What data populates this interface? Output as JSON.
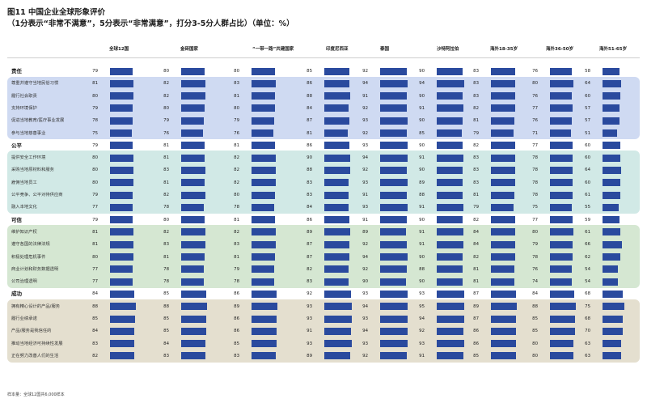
{
  "title": "图11  中国企业全球形象评价",
  "subtitle": "（1分表示“非常不满意”，5分表示“非常满意”，打分3-5分人群占比）（单位：%）",
  "footnote": "样本量：全球12国共6,000样本",
  "colors": {
    "bar": "#2a4a9e",
    "group_backgrounds": [
      "#cfdaf2",
      "#d1e9e6",
      "#d5e7d2",
      "#e4dfcf"
    ]
  },
  "chart_data": {
    "type": "bar",
    "orientation": "horizontal-small-multiples",
    "xlim": [
      0,
      100
    ],
    "columns": [
      "全球12国",
      "金砖国家",
      "“一带一路”共建国家",
      "印度尼西亚",
      "泰国",
      "沙特阿拉伯",
      "海外18-35岁",
      "海外36-50岁",
      "海外51-65岁"
    ],
    "groups": [
      {
        "name": "责任",
        "values": [
          79,
          80,
          80,
          85,
          92,
          90,
          83,
          76,
          58
        ],
        "items": [
          {
            "label": "尊重并遵守当地民俗习惯",
            "values": [
              81,
              82,
              83,
              86,
              94,
              94,
              83,
              80,
              64
            ]
          },
          {
            "label": "履行社会职责",
            "values": [
              80,
              82,
              81,
              88,
              91,
              90,
              83,
              76,
              60
            ]
          },
          {
            "label": "支持环境保护",
            "values": [
              79,
              80,
              80,
              84,
              92,
              91,
              82,
              77,
              57
            ]
          },
          {
            "label": "促进当地教育/医疗事业发展",
            "values": [
              78,
              79,
              79,
              87,
              93,
              90,
              81,
              76,
              57
            ]
          },
          {
            "label": "参与当地慈善事业",
            "values": [
              75,
              76,
              76,
              81,
              92,
              85,
              79,
              71,
              51
            ]
          }
        ]
      },
      {
        "name": "公平",
        "values": [
          79,
          81,
          81,
          86,
          93,
          90,
          82,
          77,
          60
        ],
        "items": [
          {
            "label": "提供安全工作环境",
            "values": [
              80,
              81,
              82,
              90,
              94,
              91,
              83,
              78,
              60
            ]
          },
          {
            "label": "采购当地原材料和服务",
            "values": [
              80,
              83,
              82,
              88,
              92,
              90,
              83,
              78,
              64
            ]
          },
          {
            "label": "雇佣当地员工",
            "values": [
              80,
              81,
              82,
              83,
              93,
              89,
              83,
              78,
              60
            ]
          },
          {
            "label": "公平竞争、公平对待供应商",
            "values": [
              79,
              82,
              80,
              83,
              91,
              88,
              81,
              78,
              61
            ]
          },
          {
            "label": "融入本地文化",
            "values": [
              77,
              78,
              78,
              84,
              93,
              91,
              79,
              75,
              55
            ]
          }
        ]
      },
      {
        "name": "可信",
        "values": [
          79,
          80,
          81,
          86,
          91,
          90,
          82,
          77,
          59
        ],
        "items": [
          {
            "label": "维护知识产权",
            "values": [
              81,
              82,
              82,
              89,
              89,
              91,
              84,
              80,
              61
            ]
          },
          {
            "label": "遵守各国的法律法规",
            "values": [
              81,
              83,
              83,
              87,
              92,
              91,
              84,
              79,
              66
            ]
          },
          {
            "label": "积极处理危机事件",
            "values": [
              80,
              81,
              81,
              87,
              94,
              90,
              82,
              78,
              62
            ]
          },
          {
            "label": "商业计划和财务数据透明",
            "values": [
              77,
              78,
              79,
              82,
              92,
              88,
              81,
              76,
              54
            ]
          },
          {
            "label": "公司治理透明",
            "values": [
              77,
              78,
              78,
              83,
              90,
              90,
              81,
              74,
              54
            ]
          }
        ]
      },
      {
        "name": "成功",
        "values": [
          84,
          85,
          86,
          92,
          93,
          93,
          87,
          84,
          68
        ],
        "items": [
          {
            "label": "拥有精心设计的产品/服务",
            "values": [
              88,
              88,
              89,
              93,
              94,
              95,
              89,
              88,
              75
            ]
          },
          {
            "label": "履行业绩承诺",
            "values": [
              85,
              85,
              86,
              93,
              93,
              94,
              87,
              85,
              68
            ]
          },
          {
            "label": "产品/服务是我信任的",
            "values": [
              84,
              85,
              86,
              91,
              94,
              92,
              86,
              85,
              70
            ]
          },
          {
            "label": "推动当地经济可持续性发展",
            "values": [
              83,
              84,
              85,
              93,
              93,
              93,
              86,
              80,
              63
            ]
          },
          {
            "label": "正在努力改善人们的生活",
            "values": [
              82,
              83,
              83,
              89,
              92,
              91,
              85,
              80,
              63
            ]
          }
        ]
      }
    ]
  }
}
